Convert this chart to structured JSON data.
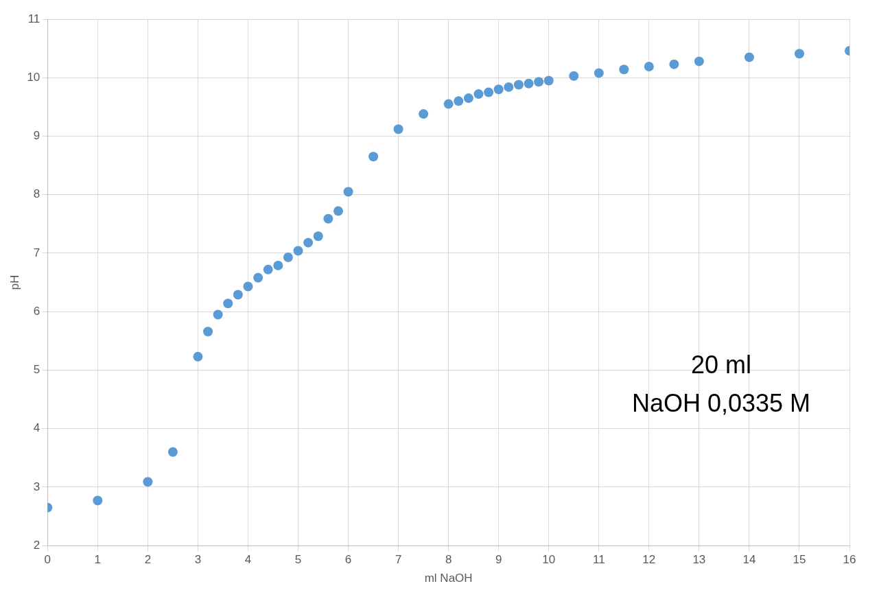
{
  "chart_data": {
    "type": "scatter",
    "xlabel": "ml NaOH",
    "ylabel": "pH",
    "x": [
      0,
      1,
      2,
      2.5,
      3,
      3.2,
      3.4,
      3.6,
      3.8,
      4,
      4.2,
      4.4,
      4.6,
      4.8,
      5,
      5.2,
      5.4,
      5.6,
      5.8,
      6,
      6.5,
      7,
      7.5,
      8,
      8.2,
      8.4,
      8.6,
      8.8,
      9,
      9.2,
      9.4,
      9.6,
      9.8,
      10,
      10.5,
      11,
      11.5,
      12,
      12.5,
      13,
      14,
      15,
      16
    ],
    "series": [
      {
        "color": "#5b9bd5",
        "values": [
          2.65,
          2.77,
          3.09,
          3.6,
          5.23,
          5.66,
          5.95,
          6.14,
          6.29,
          6.43,
          6.58,
          6.72,
          6.79,
          6.93,
          7.04,
          7.18,
          7.29,
          7.59,
          7.72,
          8.05,
          8.65,
          9.12,
          9.38,
          9.55,
          9.6,
          9.65,
          9.72,
          9.75,
          9.8,
          9.84,
          9.88,
          9.9,
          9.93,
          9.95,
          10.03,
          10.08,
          10.14,
          10.19,
          10.23,
          10.28,
          10.35,
          10.41,
          10.46
        ]
      }
    ],
    "xlim": [
      0,
      16
    ],
    "xticks": [
      0,
      1,
      2,
      3,
      4,
      5,
      6,
      7,
      8,
      9,
      10,
      11,
      12,
      13,
      14,
      15,
      16
    ],
    "ylim": [
      2,
      11
    ],
    "yticks": [
      2,
      3,
      4,
      5,
      6,
      7,
      8,
      9,
      10,
      11
    ],
    "grid": true,
    "legend": false,
    "marker": "circle",
    "annotations": [
      "20 ml",
      "NaOH 0,0335 M"
    ]
  }
}
